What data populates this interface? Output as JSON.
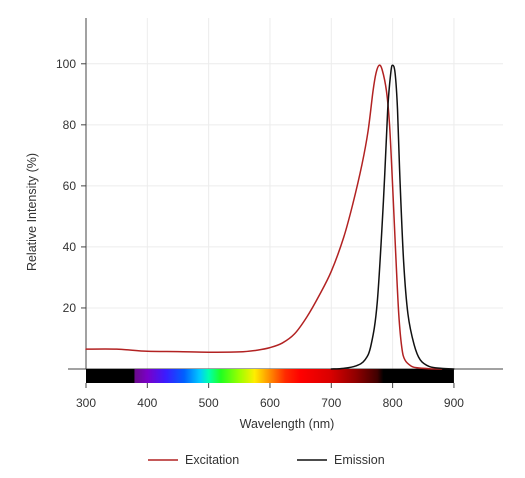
{
  "chart_data": {
    "type": "line",
    "xlabel": "Wavelength (nm)",
    "ylabel": "Relative Intensity (%)",
    "xlim": [
      300,
      980
    ],
    "ylim": [
      0,
      115
    ],
    "xticks": [
      300,
      400,
      500,
      600,
      700,
      800,
      900
    ],
    "yticks": [
      20,
      40,
      60,
      80,
      100
    ],
    "grid": true,
    "legend_position": "bottom-center",
    "spectrum_bar": {
      "range": [
        300,
        900
      ]
    },
    "series": [
      {
        "name": "Excitation",
        "color": "#b22222",
        "points": [
          [
            300,
            6.5
          ],
          [
            350,
            6.5
          ],
          [
            400,
            5.8
          ],
          [
            450,
            5.7
          ],
          [
            500,
            5.5
          ],
          [
            550,
            5.6
          ],
          [
            580,
            6.2
          ],
          [
            600,
            7.0
          ],
          [
            620,
            8.5
          ],
          [
            640,
            11.5
          ],
          [
            660,
            17
          ],
          [
            680,
            24
          ],
          [
            700,
            32
          ],
          [
            720,
            43
          ],
          [
            735,
            54
          ],
          [
            750,
            67
          ],
          [
            760,
            78
          ],
          [
            768,
            91
          ],
          [
            773,
            97
          ],
          [
            778,
            99.5
          ],
          [
            783,
            98
          ],
          [
            790,
            91
          ],
          [
            795,
            80
          ],
          [
            800,
            60
          ],
          [
            805,
            38
          ],
          [
            810,
            18
          ],
          [
            815,
            7
          ],
          [
            820,
            3
          ],
          [
            830,
            1
          ],
          [
            840,
            0.4
          ],
          [
            860,
            0.1
          ],
          [
            880,
            0
          ]
        ]
      },
      {
        "name": "Emission",
        "color": "#111111",
        "points": [
          [
            700,
            0
          ],
          [
            720,
            0.2
          ],
          [
            740,
            1
          ],
          [
            755,
            3
          ],
          [
            765,
            8
          ],
          [
            775,
            22
          ],
          [
            785,
            55
          ],
          [
            792,
            85
          ],
          [
            797,
            97
          ],
          [
            800,
            99.5
          ],
          [
            804,
            97
          ],
          [
            808,
            85
          ],
          [
            812,
            62
          ],
          [
            818,
            35
          ],
          [
            825,
            18
          ],
          [
            835,
            8
          ],
          [
            845,
            3
          ],
          [
            860,
            0.8
          ],
          [
            880,
            0.2
          ],
          [
            900,
            0
          ]
        ]
      }
    ]
  }
}
